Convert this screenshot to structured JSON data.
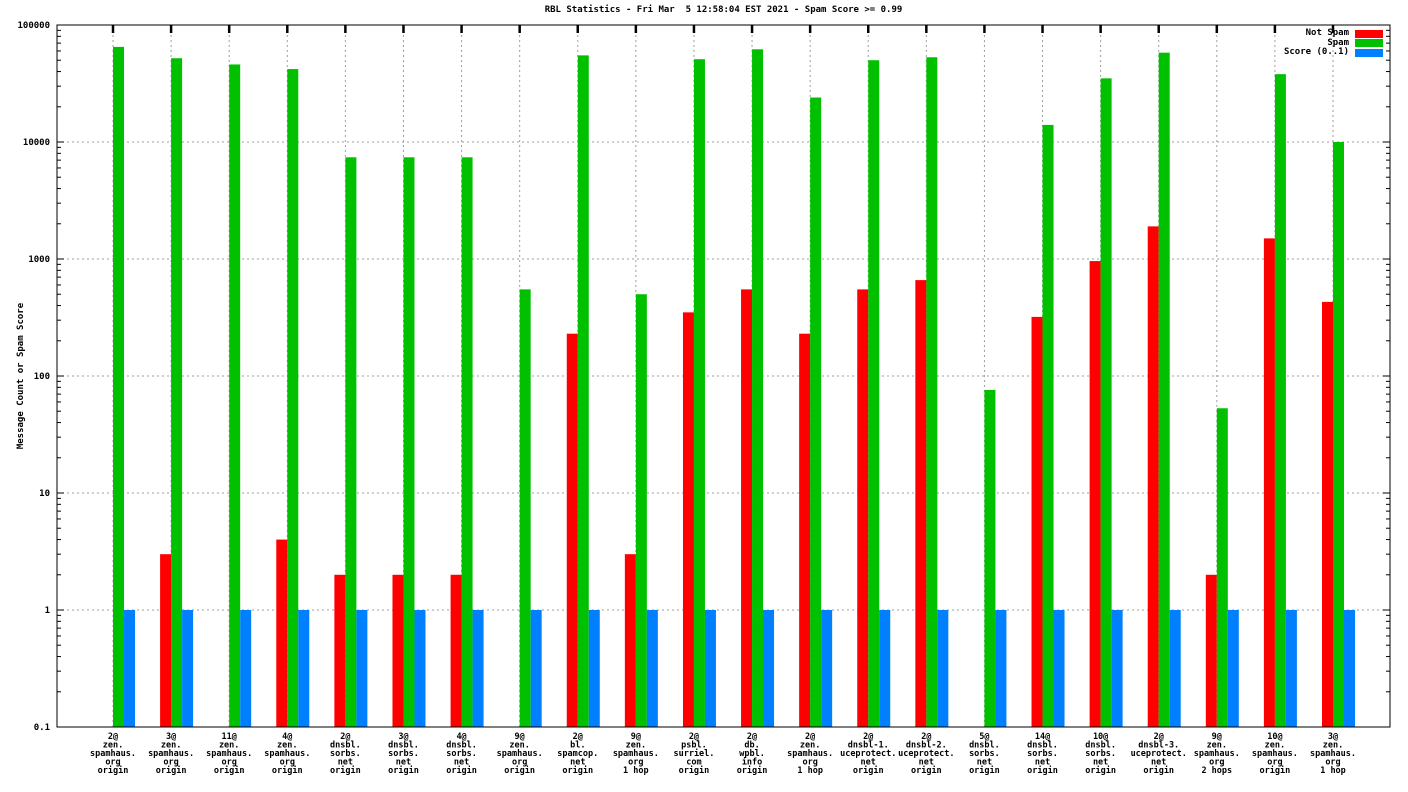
{
  "chart_data": {
    "type": "bar",
    "title": "RBL Statistics - Fri Mar  5 12:58:04 EST 2021 - Spam Score >= 0.99",
    "ylabel": "Message Count or Spam Score",
    "xlabel": "",
    "yscale": "log",
    "ylim": [
      0.1,
      100000
    ],
    "ytick_labels": [
      "100000",
      "10000",
      "1000",
      "100",
      "10",
      "1",
      "0.1"
    ],
    "grid": true,
    "legend_position": "top-right",
    "categories": [
      [
        "2@",
        "zen.",
        "spamhaus.",
        "org",
        "origin"
      ],
      [
        "3@",
        "zen.",
        "spamhaus.",
        "org",
        "origin"
      ],
      [
        "11@",
        "zen.",
        "spamhaus.",
        "org",
        "origin"
      ],
      [
        "4@",
        "zen.",
        "spamhaus.",
        "org",
        "origin"
      ],
      [
        "2@",
        "dnsbl.",
        "sorbs.",
        "net",
        "origin"
      ],
      [
        "3@",
        "dnsbl.",
        "sorbs.",
        "net",
        "origin"
      ],
      [
        "4@",
        "dnsbl.",
        "sorbs.",
        "net",
        "origin"
      ],
      [
        "9@",
        "zen.",
        "spamhaus.",
        "org",
        "origin"
      ],
      [
        "2@",
        "bl.",
        "spamcop.",
        "net",
        "origin"
      ],
      [
        "9@",
        "zen.",
        "spamhaus.",
        "org",
        "1 hop"
      ],
      [
        "2@",
        "psbl.",
        "surriel.",
        "com",
        "origin"
      ],
      [
        "2@",
        "db.",
        "wpbl.",
        "info",
        "origin"
      ],
      [
        "2@",
        "zen.",
        "spamhaus.",
        "org",
        "1 hop"
      ],
      [
        "2@",
        "dnsbl-1.",
        "uceprotect.",
        "net",
        "origin"
      ],
      [
        "2@",
        "dnsbl-2.",
        "uceprotect.",
        "net",
        "origin"
      ],
      [
        "5@",
        "dnsbl.",
        "sorbs.",
        "net",
        "origin"
      ],
      [
        "14@",
        "dnsbl.",
        "sorbs.",
        "net",
        "origin"
      ],
      [
        "10@",
        "dnsbl.",
        "sorbs.",
        "net",
        "origin"
      ],
      [
        "2@",
        "dnsbl-3.",
        "uceprotect.",
        "net",
        "origin"
      ],
      [
        "9@",
        "zen.",
        "spamhaus.",
        "org",
        "2 hops"
      ],
      [
        "10@",
        "zen.",
        "spamhaus.",
        "org",
        "origin"
      ],
      [
        "3@",
        "zen.",
        "spamhaus.",
        "org",
        "1 hop"
      ]
    ],
    "series": [
      {
        "name": "Not Spam",
        "color": "#ff0000",
        "values": [
          0,
          3,
          0,
          4,
          2,
          2,
          2,
          0,
          230,
          3,
          350,
          550,
          230,
          550,
          660,
          0,
          320,
          960,
          1900,
          2,
          1500,
          430
        ]
      },
      {
        "name": "Spam",
        "color": "#00c000",
        "values": [
          65000,
          52000,
          46000,
          42000,
          7400,
          7400,
          7400,
          550,
          55000,
          500,
          51000,
          62000,
          24000,
          50000,
          53000,
          76,
          14000,
          35000,
          58000,
          53,
          38000,
          10000
        ]
      },
      {
        "name": "Score (0..1)",
        "color": "#0080ff",
        "values": [
          1,
          1,
          1,
          1,
          1,
          1,
          1,
          1,
          1,
          1,
          1,
          1,
          1,
          1,
          1,
          1,
          1,
          1,
          1,
          1,
          1,
          1
        ]
      }
    ]
  }
}
